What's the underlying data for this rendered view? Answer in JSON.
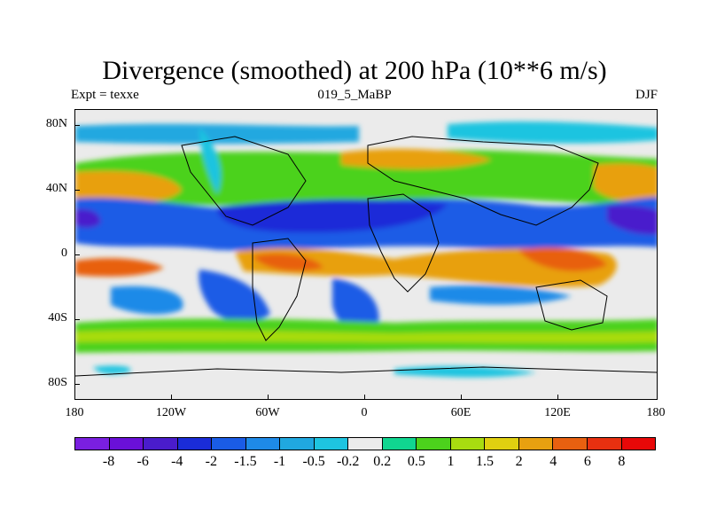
{
  "title": "Divergence (smoothed) at 200 hPa (10**6 m/s)",
  "subtitle": {
    "left": "Expt = texxe",
    "center": "019_5_MaBP",
    "right": "DJF"
  },
  "axes": {
    "lat_labels": [
      "80N",
      "40N",
      "0",
      "40S",
      "80S"
    ],
    "lon_labels": [
      "180",
      "120W",
      "60W",
      "0",
      "60E",
      "120E",
      "180"
    ]
  },
  "colorbar": {
    "colors": [
      "#7a1fe0",
      "#6a10d8",
      "#4a1ccc",
      "#1a2cd8",
      "#1a5ce6",
      "#1e8ae8",
      "#20a8e0",
      "#1ec4e0",
      "#ebebeb",
      "#10d690",
      "#4cd21c",
      "#a8dc10",
      "#e0d010",
      "#e8a010",
      "#e86010",
      "#e83010",
      "#e80808"
    ],
    "labels": [
      "-8",
      "-6",
      "-4",
      "-2",
      "-1.5",
      "-1",
      "-0.5",
      "-0.2",
      "0.2",
      "0.5",
      "1",
      "1.5",
      "2",
      "4",
      "6",
      "8"
    ]
  }
}
